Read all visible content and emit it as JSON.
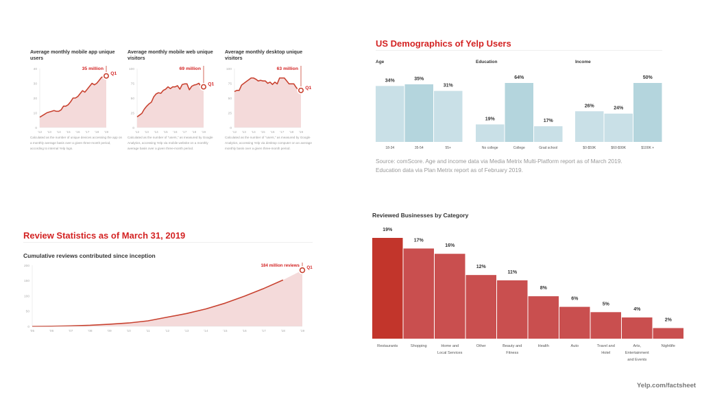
{
  "footer": "Yelp.com/factsheet",
  "demographics": {
    "title": "US Demographics of Yelp Users",
    "source_line1": "Source: comScore. Age and income data via Media Metrix Multi-Platform report as of March 2019.",
    "source_line2": "Education data via Plan Metrix report as of February 2019."
  },
  "reviews": {
    "title": "Review Statistics as of March 31, 2019",
    "subtitle": "Cumulative reviews contributed since inception"
  },
  "categories": {
    "title": "Reviewed Businesses by Category"
  },
  "mini_notes": [
    "Calculated as the number of unique devices accessing the app on a monthly average basis over a given three-month period, according to internal Yelp logs.",
    "Calculated as the number of \"users,\" as measured by Google Analytics, accessing Yelp via mobile website on a monthly average basis over a given three-month period.",
    "Calculated as the number of \"users,\" as measured by Google Analytics, accessing Yelp via desktop computer on an average monthly basis over a given three-month period."
  ],
  "colors": {
    "accent_red": "#d32323",
    "line_red": "#c8412f",
    "area_fill": "#f4dada",
    "bar_red_primary": "#c2352b",
    "bar_red": "#c94f4f",
    "bar_blue": "#c9e0e7",
    "bar_blue_highlight": "#b4d5dd"
  },
  "chart_data": [
    {
      "id": "mobile_app",
      "type": "area",
      "title": "Average monthly mobile app unique users",
      "xlabel": "",
      "ylabel": "",
      "ylim": [
        0,
        40
      ],
      "yticks": [
        "0",
        "10",
        "20",
        "30",
        "40"
      ],
      "xticks": [
        "'12",
        "'13",
        "'14",
        "'15",
        "'16",
        "'17",
        "'18",
        "'19"
      ],
      "x": [
        2012.0,
        2012.25,
        2012.5,
        2012.75,
        2013.0,
        2013.25,
        2013.5,
        2013.75,
        2014.0,
        2014.25,
        2014.5,
        2014.75,
        2015.0,
        2015.25,
        2015.5,
        2015.75,
        2016.0,
        2016.25,
        2016.5,
        2016.75,
        2017.0,
        2017.25,
        2017.5,
        2017.75,
        2018.0,
        2018.25,
        2018.5,
        2018.75,
        2019.0
      ],
      "values": [
        7,
        8,
        9,
        10,
        10.5,
        11,
        11.5,
        11,
        11,
        12,
        14.5,
        14.5,
        15.5,
        17.5,
        20,
        20,
        21,
        23,
        25,
        24,
        26,
        28,
        30,
        29,
        30,
        32,
        34,
        35,
        35
      ],
      "annotation": {
        "label": "35 million",
        "quarter": "Q1",
        "value": 35
      }
    },
    {
      "id": "mobile_web",
      "type": "area",
      "title": "Average monthly mobile web unique visitors",
      "xlabel": "",
      "ylabel": "",
      "ylim": [
        0,
        100
      ],
      "yticks": [
        "0",
        "25",
        "50",
        "75",
        "100"
      ],
      "xticks": [
        "'12",
        "'13",
        "'14",
        "'15",
        "'16",
        "'17",
        "'18",
        "'19"
      ],
      "x": [
        2012.0,
        2012.25,
        2012.5,
        2012.75,
        2013.0,
        2013.25,
        2013.5,
        2013.75,
        2014.0,
        2014.25,
        2014.5,
        2014.75,
        2015.0,
        2015.25,
        2015.5,
        2015.75,
        2016.0,
        2016.25,
        2016.5,
        2016.75,
        2017.0,
        2017.25,
        2017.5,
        2017.75,
        2018.0,
        2018.25,
        2018.5,
        2018.75,
        2019.0
      ],
      "values": [
        18,
        21,
        24,
        31,
        36,
        40,
        43,
        52,
        57,
        59,
        58,
        63,
        65,
        69,
        66,
        69,
        69,
        71,
        65,
        73,
        74,
        74,
        64,
        70,
        72,
        73,
        75,
        69,
        69
      ],
      "annotation": {
        "label": "69 million",
        "quarter": "Q1",
        "value": 69
      }
    },
    {
      "id": "desktop",
      "type": "area",
      "title": "Average monthly desktop unique visitors",
      "xlabel": "",
      "ylabel": "",
      "ylim": [
        0,
        100
      ],
      "yticks": [
        "0",
        "25",
        "50",
        "75",
        "100"
      ],
      "xticks": [
        "'12",
        "'13",
        "'14",
        "'15",
        "'16",
        "'17",
        "'18",
        "'19"
      ],
      "x": [
        2012.0,
        2012.25,
        2012.5,
        2012.75,
        2013.0,
        2013.25,
        2013.5,
        2013.75,
        2014.0,
        2014.25,
        2014.5,
        2014.75,
        2015.0,
        2015.25,
        2015.5,
        2015.75,
        2016.0,
        2016.25,
        2016.5,
        2016.75,
        2017.0,
        2017.25,
        2017.5,
        2017.75,
        2018.0,
        2018.25,
        2018.5,
        2018.75,
        2019.0
      ],
      "values": [
        61,
        63,
        63,
        72,
        75,
        78,
        81,
        84,
        84,
        82,
        79,
        80,
        79,
        79,
        75,
        77,
        73,
        77,
        74,
        84,
        84,
        84,
        79,
        74,
        74,
        74,
        68,
        63,
        63
      ],
      "annotation": {
        "label": "63 million",
        "quarter": "Q1",
        "value": 63
      }
    },
    {
      "id": "age",
      "type": "bar",
      "title": "Age",
      "categories": [
        "18-34",
        "35-54",
        "55+"
      ],
      "values": [
        34,
        35,
        31
      ],
      "value_labels": [
        "34%",
        "35%",
        "31%"
      ],
      "highlight": 1,
      "ylim": [
        0,
        50
      ]
    },
    {
      "id": "education",
      "type": "bar",
      "title": "Education",
      "categories": [
        "No college",
        "College",
        "Grad school"
      ],
      "values": [
        19,
        64,
        17
      ],
      "value_labels": [
        "19%",
        "64%",
        "17%"
      ],
      "highlight": 1,
      "ylim": [
        0,
        64
      ]
    },
    {
      "id": "income",
      "type": "bar",
      "title": "Income",
      "categories": [
        "$0-$59K",
        "$60-$99K",
        "$100K +"
      ],
      "values": [
        26,
        24,
        50
      ],
      "value_labels": [
        "26%",
        "24%",
        "50%"
      ],
      "highlight": 2,
      "ylim": [
        0,
        50
      ]
    },
    {
      "id": "cumulative_reviews",
      "type": "area",
      "title": "Cumulative reviews contributed since inception",
      "xlabel": "",
      "ylabel": "",
      "ylim": [
        0,
        200
      ],
      "yticks": [
        "0",
        "50",
        "100",
        "150",
        "200"
      ],
      "xticks": [
        "'05",
        "'06",
        "'07",
        "'08",
        "'09",
        "'10",
        "'11",
        "'12",
        "'13",
        "'14",
        "'15",
        "'16",
        "'17",
        "'18",
        "'19"
      ],
      "x": [
        2005,
        2006,
        2007,
        2008,
        2009,
        2010,
        2011,
        2012,
        2013,
        2014,
        2015,
        2016,
        2017,
        2018,
        2019
      ],
      "values": [
        0,
        0.5,
        1.5,
        3.5,
        7,
        11,
        18,
        30,
        42,
        57,
        76,
        99,
        124,
        152,
        184
      ],
      "annotation": {
        "label": "184 million reviews",
        "quarter": "Q1",
        "value": 184
      }
    },
    {
      "id": "business_categories",
      "type": "bar",
      "title": "Reviewed Businesses by Category",
      "categories": [
        "Restaurants",
        "Shopping",
        "Home and Local Services",
        "Other",
        "Beauty and Fitness",
        "Health",
        "Auto",
        "Travel and Hotel",
        "Arts, Entertainment and Events",
        "Nightlife"
      ],
      "category_lines": [
        [
          "Restaurants"
        ],
        [
          "Shopping"
        ],
        [
          "Home and",
          "Local Services"
        ],
        [
          "Other"
        ],
        [
          "Beauty and",
          "Fitness"
        ],
        [
          "Health"
        ],
        [
          "Auto"
        ],
        [
          "Travel and",
          "Hotel"
        ],
        [
          "Arts,",
          "Entertainment",
          "and Events"
        ],
        [
          "Nightlife"
        ]
      ],
      "values": [
        19,
        17,
        16,
        12,
        11,
        8,
        6,
        5,
        4,
        2
      ],
      "value_labels": [
        "19%",
        "17%",
        "16%",
        "12%",
        "11%",
        "8%",
        "6%",
        "5%",
        "4%",
        "2%"
      ],
      "highlight": 0,
      "ylim": [
        0,
        19
      ]
    }
  ]
}
